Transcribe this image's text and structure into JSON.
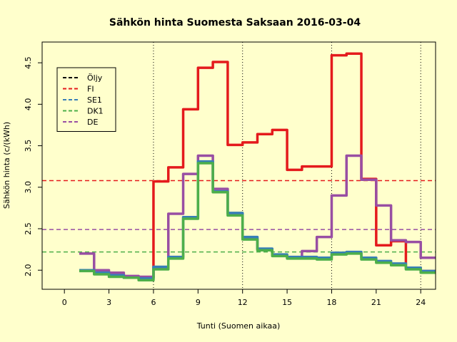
{
  "chart_data": {
    "type": "line",
    "step": true,
    "title": "Sähkön hinta Suomesta Saksaan 2016-03-04",
    "xlabel": "Tunti (Suomen aikaa)",
    "ylabel": "Sähkön hinta (c/(kWh)",
    "xlim": [
      -1.5,
      25
    ],
    "ylim": [
      1.77,
      4.75
    ],
    "xticks": [
      0,
      3,
      6,
      9,
      12,
      15,
      18,
      21,
      24
    ],
    "yticks": [
      2.0,
      2.5,
      3.0,
      3.5,
      4.0,
      4.5
    ],
    "ytick_labels": [
      "2.0",
      "2.5",
      "3.0",
      "3.5",
      "4.0",
      "4.5"
    ],
    "vlines": [
      6,
      12,
      18,
      24
    ],
    "legend_position": "top-left",
    "hlines": [
      {
        "series": "FI",
        "value": 3.08
      },
      {
        "series": "DE",
        "value": 2.49
      },
      {
        "series": "DK1",
        "value": 2.22
      }
    ],
    "hours": [
      1,
      2,
      3,
      4,
      5,
      6,
      7,
      8,
      9,
      10,
      11,
      12,
      13,
      14,
      15,
      16,
      17,
      18,
      19,
      20,
      21,
      22,
      23,
      24,
      25
    ],
    "series": [
      {
        "name": "Öljy",
        "color": "#000000",
        "values": []
      },
      {
        "name": "FI",
        "color": "#e41a1c",
        "values": [
          2.0,
          1.98,
          1.95,
          1.92,
          1.91,
          3.07,
          3.24,
          3.94,
          4.44,
          4.51,
          3.51,
          3.54,
          3.64,
          3.69,
          3.21,
          3.25,
          3.25,
          4.59,
          4.61,
          3.1,
          2.3,
          2.35,
          2.03,
          1.99,
          1.99
        ]
      },
      {
        "name": "SE1",
        "color": "#377eb8",
        "values": [
          2.0,
          1.97,
          1.94,
          1.91,
          1.9,
          2.04,
          2.16,
          2.64,
          3.31,
          2.95,
          2.69,
          2.4,
          2.26,
          2.19,
          2.16,
          2.16,
          2.15,
          2.21,
          2.22,
          2.15,
          2.11,
          2.08,
          2.03,
          1.99,
          1.99
        ]
      },
      {
        "name": "DK1",
        "color": "#4daf4a",
        "values": [
          1.99,
          1.95,
          1.92,
          1.91,
          1.88,
          2.01,
          2.14,
          2.62,
          3.29,
          2.94,
          2.66,
          2.37,
          2.24,
          2.17,
          2.14,
          2.14,
          2.13,
          2.19,
          2.2,
          2.13,
          2.09,
          2.06,
          2.01,
          1.97,
          1.97
        ]
      },
      {
        "name": "DE",
        "color": "#984ea3",
        "values": [
          2.2,
          2.0,
          1.97,
          1.93,
          1.92,
          2.03,
          2.68,
          3.16,
          3.38,
          2.98,
          2.68,
          2.38,
          2.25,
          2.18,
          2.15,
          2.23,
          2.4,
          2.9,
          3.38,
          3.09,
          2.78,
          2.36,
          2.34,
          2.15,
          2.15
        ]
      }
    ]
  }
}
